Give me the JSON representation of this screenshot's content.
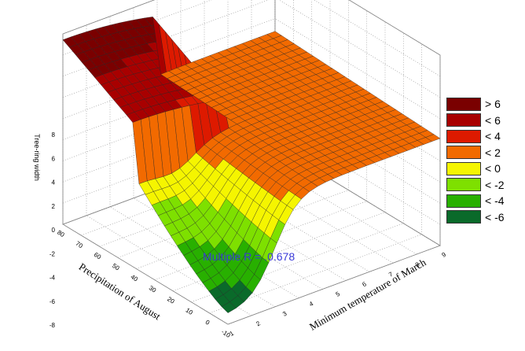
{
  "chart_data": {
    "type": "surface3d",
    "title": "",
    "zlabel": "Tree-ring width",
    "xlabel": "Precipitation of August",
    "ylabel": "Minimum temperature of March",
    "x_ticks": [
      "-10",
      "0",
      "10",
      "20",
      "30",
      "40",
      "50",
      "60",
      "70",
      "80"
    ],
    "y_ticks": [
      "1",
      "2",
      "3",
      "4",
      "5",
      "6",
      "7",
      "8",
      "9"
    ],
    "z_ticks": [
      "-8",
      "-6",
      "-4",
      "-2",
      "0",
      "2",
      "4",
      "6",
      "8"
    ],
    "xlim": [
      -10,
      80
    ],
    "ylim": [
      1,
      9
    ],
    "zlim": [
      -8,
      8
    ],
    "annotation": "Multiple R = .0.678",
    "legend": [
      {
        "label": "> 6",
        "color": "#7a0000"
      },
      {
        "label": "< 6",
        "color": "#a80000"
      },
      {
        "label": "< 4",
        "color": "#dd1a00"
      },
      {
        "label": "< 2",
        "color": "#f26a00"
      },
      {
        "label": "< 0",
        "color": "#f5f500"
      },
      {
        "label": "< -2",
        "color": "#7ee000"
      },
      {
        "label": "< -4",
        "color": "#28b000"
      },
      {
        "label": "< -6",
        "color": "#0a6a2a"
      }
    ],
    "legend_position": "right",
    "grid": true
  }
}
